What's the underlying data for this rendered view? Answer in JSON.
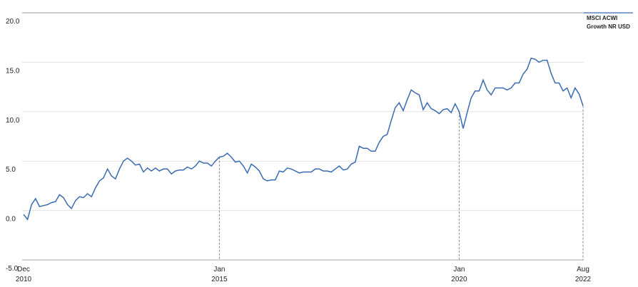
{
  "chart_data": {
    "type": "line",
    "x": [
      "2010-12",
      "2011-01",
      "2011-02",
      "2011-03",
      "2011-04",
      "2011-05",
      "2011-06",
      "2011-07",
      "2011-08",
      "2011-09",
      "2011-10",
      "2011-11",
      "2011-12",
      "2012-01",
      "2012-02",
      "2012-03",
      "2012-04",
      "2012-05",
      "2012-06",
      "2012-07",
      "2012-08",
      "2012-09",
      "2012-10",
      "2012-11",
      "2012-12",
      "2013-01",
      "2013-02",
      "2013-03",
      "2013-04",
      "2013-05",
      "2013-06",
      "2013-07",
      "2013-08",
      "2013-09",
      "2013-10",
      "2013-11",
      "2013-12",
      "2014-01",
      "2014-02",
      "2014-03",
      "2014-04",
      "2014-05",
      "2014-06",
      "2014-07",
      "2014-08",
      "2014-09",
      "2014-10",
      "2014-11",
      "2014-12",
      "2015-01",
      "2015-02",
      "2015-03",
      "2015-04",
      "2015-05",
      "2015-06",
      "2015-07",
      "2015-08",
      "2015-09",
      "2015-10",
      "2015-11",
      "2015-12",
      "2016-01",
      "2016-02",
      "2016-03",
      "2016-04",
      "2016-05",
      "2016-06",
      "2016-07",
      "2016-08",
      "2016-09",
      "2016-10",
      "2016-11",
      "2016-12",
      "2017-01",
      "2017-02",
      "2017-03",
      "2017-04",
      "2017-05",
      "2017-06",
      "2017-07",
      "2017-08",
      "2017-09",
      "2017-10",
      "2017-11",
      "2017-12",
      "2018-01",
      "2018-02",
      "2018-03",
      "2018-04",
      "2018-05",
      "2018-06",
      "2018-07",
      "2018-08",
      "2018-09",
      "2018-10",
      "2018-11",
      "2018-12",
      "2019-01",
      "2019-02",
      "2019-03",
      "2019-04",
      "2019-05",
      "2019-06",
      "2019-07",
      "2019-08",
      "2019-09",
      "2019-10",
      "2019-11",
      "2019-12",
      "2020-01",
      "2020-02",
      "2020-03",
      "2020-04",
      "2020-05",
      "2020-06",
      "2020-07",
      "2020-08",
      "2020-09",
      "2020-10",
      "2020-11",
      "2020-12",
      "2021-01",
      "2021-02",
      "2021-03",
      "2021-04",
      "2021-05",
      "2021-06",
      "2021-07",
      "2021-08",
      "2021-09",
      "2021-10",
      "2021-11",
      "2021-12",
      "2022-01",
      "2022-02",
      "2022-03",
      "2022-04",
      "2022-05",
      "2022-06",
      "2022-07",
      "2022-08"
    ],
    "series": [
      {
        "name": "MSCI ACWI Growth NR USD",
        "color": "#3a6bb0",
        "values": [
          -0.4,
          -0.9,
          0.6,
          1.2,
          0.4,
          0.5,
          0.6,
          0.8,
          0.9,
          1.6,
          1.3,
          0.6,
          0.2,
          1.0,
          1.4,
          1.3,
          1.7,
          1.4,
          2.3,
          3.0,
          3.3,
          4.2,
          3.5,
          3.2,
          4.2,
          5.0,
          5.3,
          5.0,
          4.6,
          4.7,
          3.9,
          4.3,
          4.0,
          4.3,
          4.0,
          4.2,
          4.2,
          3.7,
          4.0,
          4.1,
          4.1,
          4.4,
          4.2,
          4.5,
          5.0,
          4.8,
          4.8,
          4.5,
          5.0,
          5.4,
          5.5,
          5.8,
          5.4,
          4.9,
          5.0,
          4.5,
          3.8,
          4.7,
          4.4,
          4.0,
          3.2,
          3.0,
          3.1,
          3.1,
          4.0,
          3.9,
          4.3,
          4.2,
          4.0,
          3.8,
          3.9,
          3.9,
          3.9,
          4.2,
          4.2,
          4.0,
          4.0,
          3.9,
          4.2,
          4.5,
          4.1,
          4.2,
          4.7,
          4.9,
          6.5,
          6.3,
          6.3,
          6.0,
          6.0,
          6.9,
          7.5,
          7.7,
          9.1,
          10.4,
          10.9,
          10.1,
          11.2,
          12.2,
          11.9,
          11.7,
          10.2,
          10.9,
          10.3,
          10.1,
          9.8,
          10.2,
          10.3,
          9.9,
          10.8,
          10.0,
          8.3,
          9.9,
          11.4,
          12.1,
          12.1,
          13.2,
          12.2,
          11.7,
          12.4,
          12.4,
          12.4,
          12.2,
          12.4,
          12.9,
          12.9,
          13.8,
          14.3,
          15.4,
          15.3,
          15.0,
          15.2,
          15.2,
          13.9,
          12.9,
          12.9,
          12.1,
          12.4,
          11.4,
          12.4,
          11.8,
          10.6
        ]
      }
    ],
    "ylim": [
      -5,
      20
    ],
    "yticks": [
      {
        "value": 20,
        "label": "20.0"
      },
      {
        "value": 15,
        "label": "15.0"
      },
      {
        "value": 10,
        "label": "10.0"
      },
      {
        "value": 5,
        "label": "5.0"
      },
      {
        "value": 0,
        "label": "0.0"
      },
      {
        "value": -5,
        "label": "-5.0"
      }
    ],
    "xticks": [
      {
        "value": "2010-12",
        "label": "Dec 2010"
      },
      {
        "value": "2015-01",
        "label": "Jan 2015"
      },
      {
        "value": "2020-01",
        "label": "Jan 2020"
      },
      {
        "value": "2022-08",
        "label": "Aug 2022"
      }
    ],
    "grid": true
  }
}
